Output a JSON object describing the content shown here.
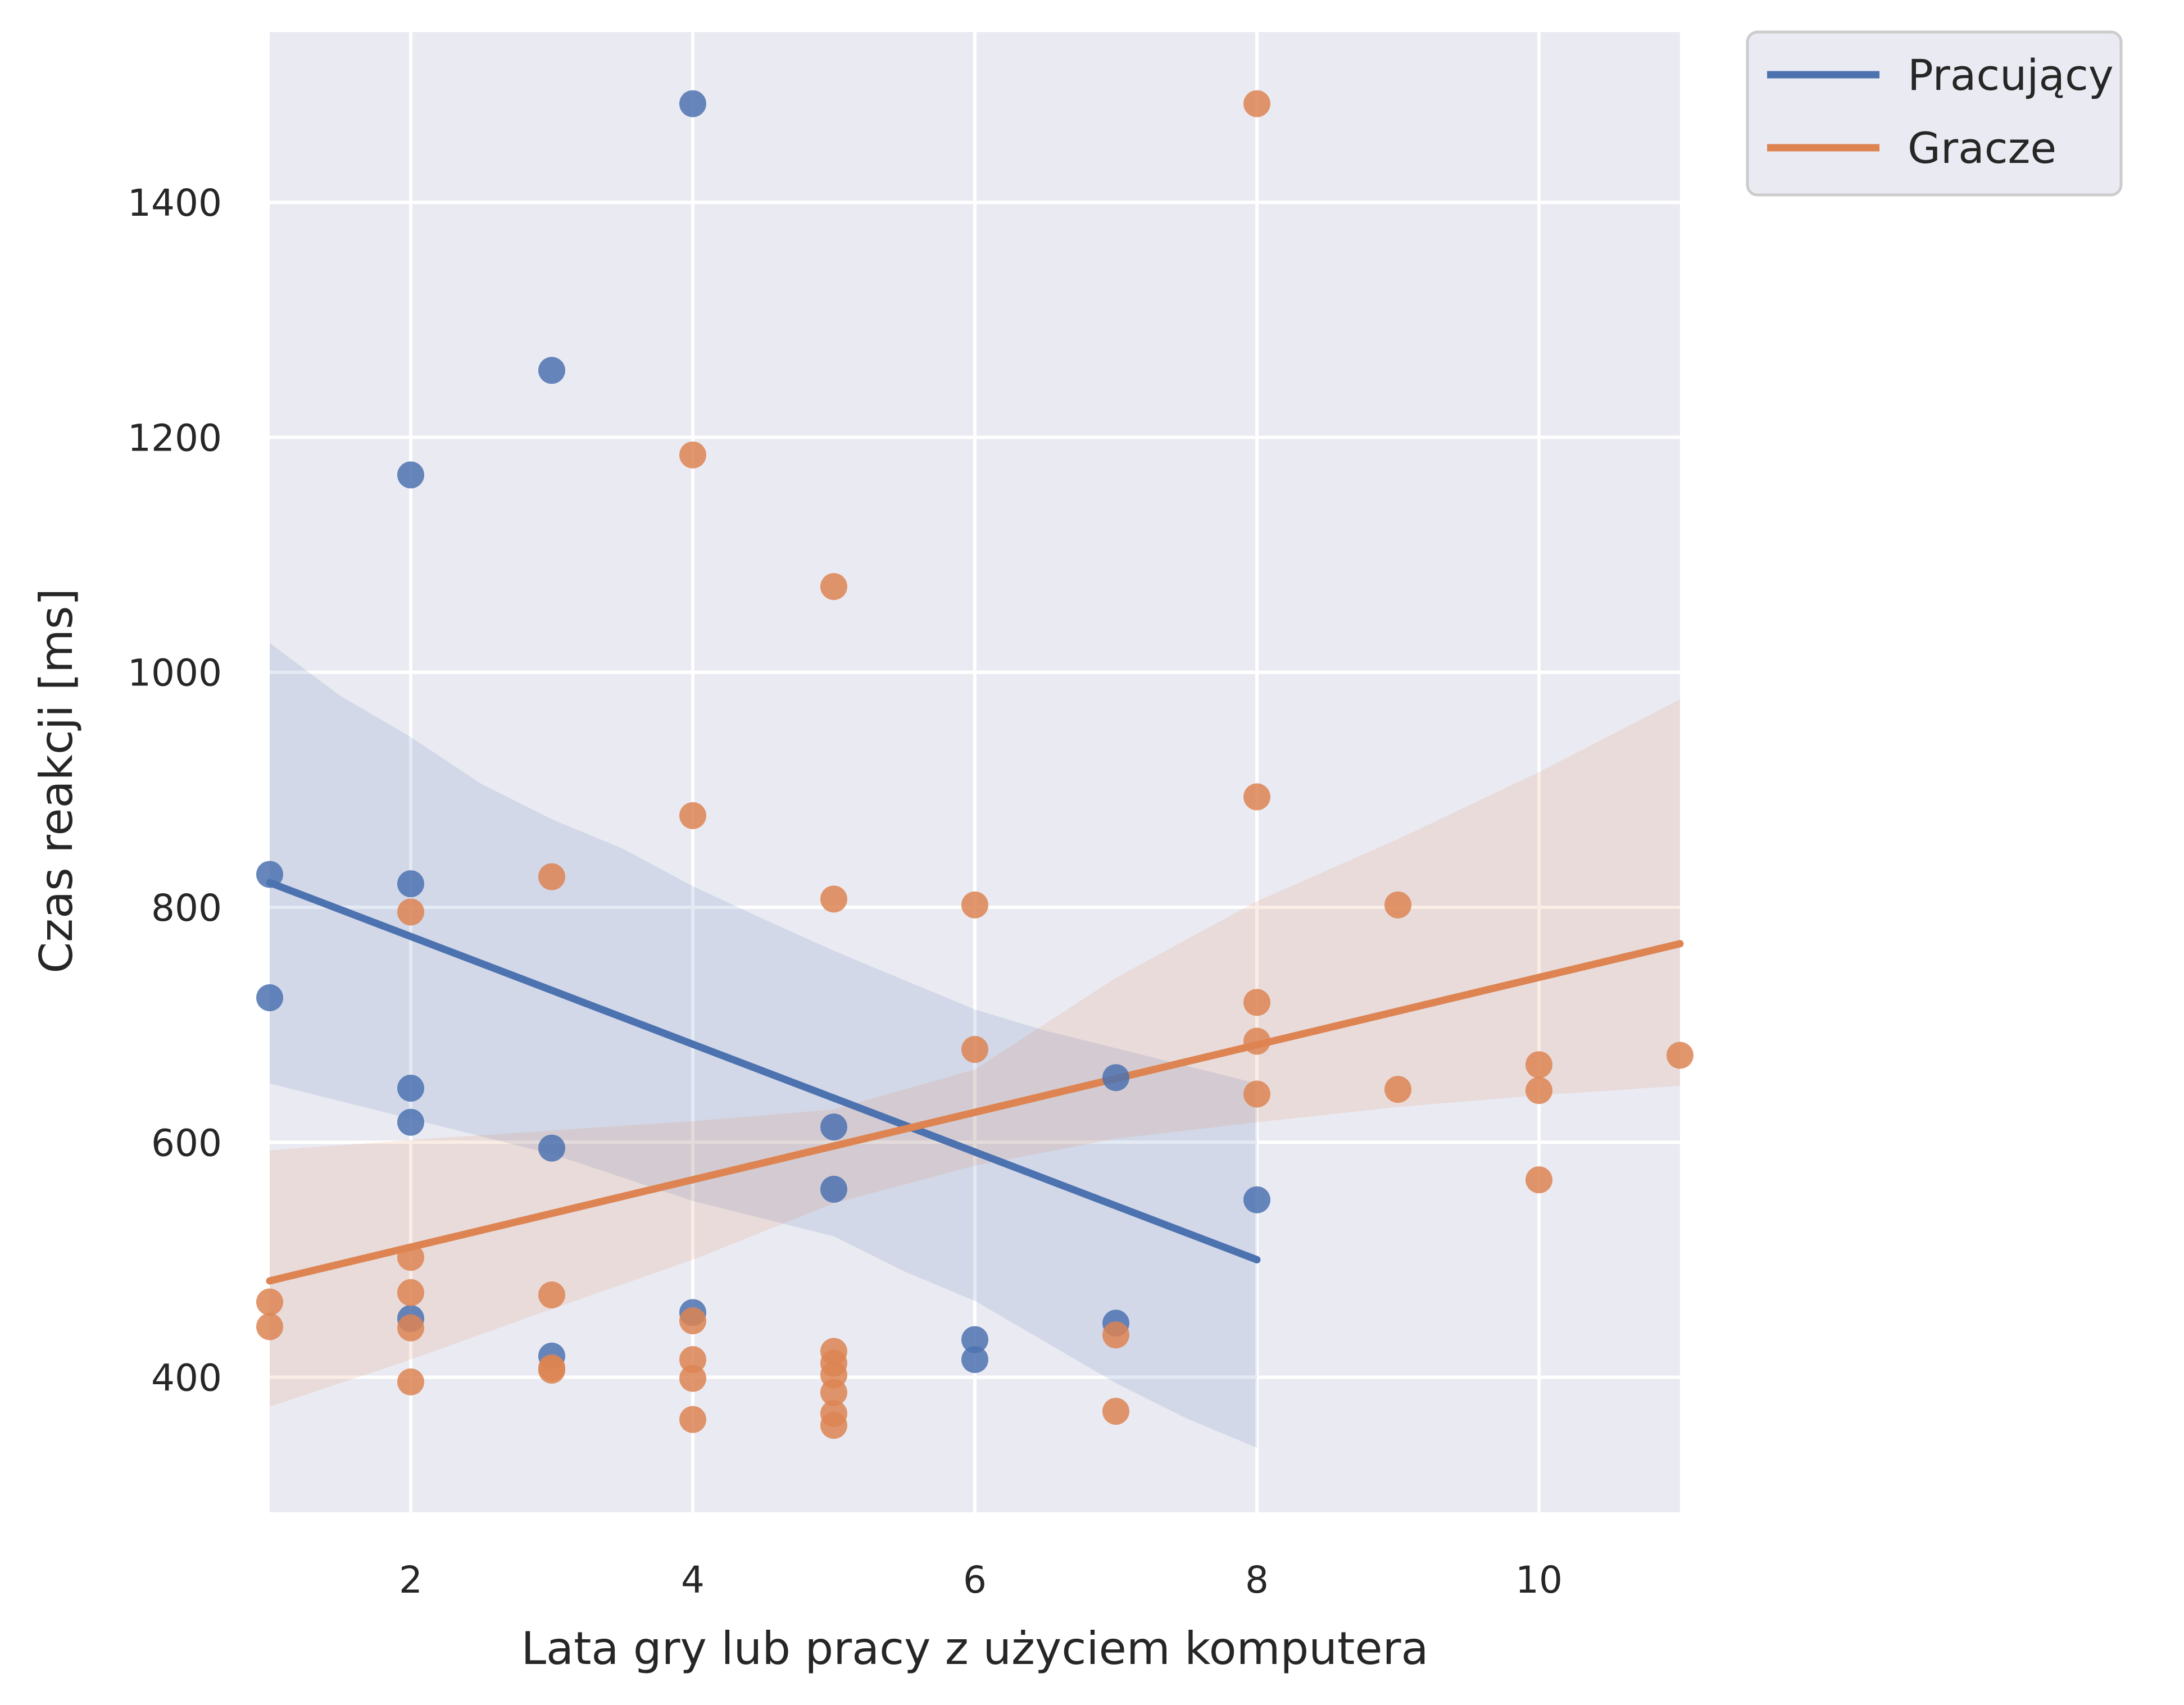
{
  "chart_data": {
    "type": "scatter",
    "xlabel": "Lata gry lub pracy z użyciem komputera",
    "ylabel": "Czas reakcji [ms]",
    "xlim": [
      1,
      11
    ],
    "ylim": [
      285,
      1545
    ],
    "x_ticks": [
      2,
      4,
      6,
      8,
      10
    ],
    "y_ticks": [
      400,
      600,
      800,
      1000,
      1200,
      1400
    ],
    "grid": true,
    "legend_position": "outside top-right",
    "series": [
      {
        "name": "Pracujący",
        "color": "#4c72b0",
        "points": [
          {
            "x": 1,
            "y": 828
          },
          {
            "x": 1,
            "y": 723
          },
          {
            "x": 2,
            "y": 1168
          },
          {
            "x": 2,
            "y": 820
          },
          {
            "x": 2,
            "y": 646
          },
          {
            "x": 2,
            "y": 617
          },
          {
            "x": 2,
            "y": 450
          },
          {
            "x": 3,
            "y": 1257
          },
          {
            "x": 3,
            "y": 595
          },
          {
            "x": 3,
            "y": 418
          },
          {
            "x": 4,
            "y": 1484
          },
          {
            "x": 4,
            "y": 455
          },
          {
            "x": 5,
            "y": 613
          },
          {
            "x": 5,
            "y": 560
          },
          {
            "x": 6,
            "y": 432
          },
          {
            "x": 6,
            "y": 415
          },
          {
            "x": 7,
            "y": 655
          },
          {
            "x": 7,
            "y": 446
          },
          {
            "x": 8,
            "y": 551
          }
        ],
        "regression": {
          "x": [
            1,
            8
          ],
          "y": [
            821,
            500
          ]
        },
        "ci_band": {
          "x": [
            1,
            1.5,
            2,
            2.5,
            3,
            3.5,
            4,
            4.5,
            5,
            5.5,
            6,
            6.5,
            7,
            7.5,
            8
          ],
          "upper": [
            1025,
            980,
            945,
            905,
            875,
            850,
            818,
            790,
            763,
            738,
            713,
            695,
            680,
            665,
            650
          ],
          "lower": [
            650,
            635,
            620,
            605,
            590,
            570,
            550,
            535,
            520,
            490,
            465,
            430,
            395,
            365,
            340
          ]
        }
      },
      {
        "name": "Gracze",
        "color": "#dd8452",
        "points": [
          {
            "x": 1,
            "y": 464
          },
          {
            "x": 1,
            "y": 443
          },
          {
            "x": 2,
            "y": 796
          },
          {
            "x": 2,
            "y": 502
          },
          {
            "x": 2,
            "y": 472
          },
          {
            "x": 2,
            "y": 442
          },
          {
            "x": 2,
            "y": 396
          },
          {
            "x": 3,
            "y": 826
          },
          {
            "x": 3,
            "y": 470
          },
          {
            "x": 3,
            "y": 408
          },
          {
            "x": 3,
            "y": 406
          },
          {
            "x": 4,
            "y": 1185
          },
          {
            "x": 4,
            "y": 878
          },
          {
            "x": 4,
            "y": 448
          },
          {
            "x": 4,
            "y": 415
          },
          {
            "x": 4,
            "y": 399
          },
          {
            "x": 4,
            "y": 364
          },
          {
            "x": 5,
            "y": 1073
          },
          {
            "x": 5,
            "y": 807
          },
          {
            "x": 5,
            "y": 422
          },
          {
            "x": 5,
            "y": 412
          },
          {
            "x": 5,
            "y": 402
          },
          {
            "x": 5,
            "y": 387
          },
          {
            "x": 5,
            "y": 369
          },
          {
            "x": 5,
            "y": 359
          },
          {
            "x": 6,
            "y": 802
          },
          {
            "x": 6,
            "y": 679
          },
          {
            "x": 7,
            "y": 436
          },
          {
            "x": 7,
            "y": 371
          },
          {
            "x": 8,
            "y": 1484
          },
          {
            "x": 8,
            "y": 894
          },
          {
            "x": 8,
            "y": 719
          },
          {
            "x": 8,
            "y": 686
          },
          {
            "x": 8,
            "y": 641
          },
          {
            "x": 9,
            "y": 802
          },
          {
            "x": 9,
            "y": 645
          },
          {
            "x": 10,
            "y": 666
          },
          {
            "x": 10,
            "y": 644
          },
          {
            "x": 10,
            "y": 568
          },
          {
            "x": 11,
            "y": 674
          }
        ],
        "regression": {
          "x": [
            1,
            11
          ],
          "y": [
            482,
            769
          ]
        },
        "ci_band": {
          "x": [
            1,
            2,
            3,
            4,
            5,
            6,
            7,
            8,
            9,
            10,
            11
          ],
          "upper": [
            593,
            602,
            610,
            618,
            628,
            662,
            740,
            805,
            858,
            915,
            977
          ],
          "lower": [
            375,
            415,
            458,
            500,
            548,
            580,
            603,
            617,
            630,
            640,
            648
          ]
        }
      }
    ]
  }
}
